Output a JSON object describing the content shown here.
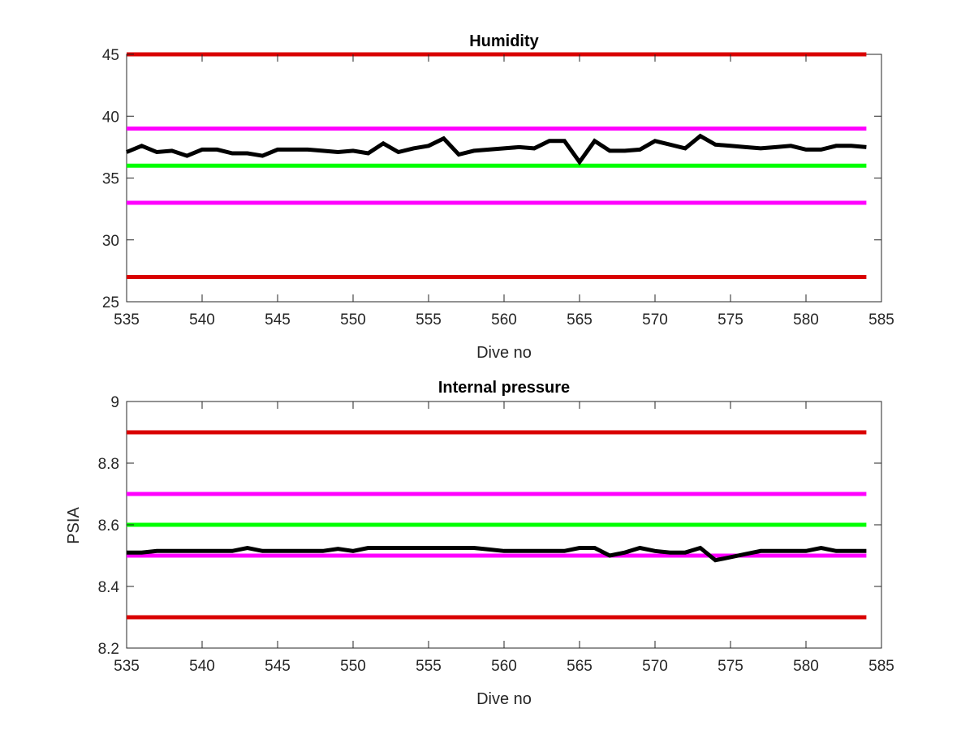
{
  "chart_data": [
    {
      "type": "line",
      "title": "Humidity",
      "xlabel": "Dive no",
      "ylabel": "",
      "xlim": [
        535,
        585
      ],
      "ylim": [
        25,
        45
      ],
      "xticks": [
        "535",
        "540",
        "545",
        "550",
        "555",
        "560",
        "565",
        "570",
        "575",
        "580",
        "585"
      ],
      "yticks": [
        "25",
        "30",
        "35",
        "40",
        "45"
      ],
      "grid": false,
      "hlines": [
        {
          "value": 45,
          "color": "#d90000"
        },
        {
          "value": 39,
          "color": "#ff00ff"
        },
        {
          "value": 36,
          "color": "#00ff00"
        },
        {
          "value": 33,
          "color": "#ff00ff"
        },
        {
          "value": 27,
          "color": "#d90000"
        }
      ],
      "series": [
        {
          "color": "#000000",
          "x": [
            535,
            536,
            537,
            538,
            539,
            540,
            541,
            542,
            543,
            544,
            545,
            546,
            547,
            548,
            549,
            550,
            551,
            552,
            553,
            554,
            555,
            556,
            557,
            558,
            559,
            560,
            561,
            562,
            563,
            564,
            565,
            566,
            567,
            568,
            569,
            570,
            571,
            572,
            573,
            574,
            575,
            576,
            577,
            578,
            579,
            580,
            581,
            582,
            583,
            584
          ],
          "y": [
            37.1,
            37.6,
            37.1,
            37.2,
            36.8,
            37.3,
            37.3,
            37.0,
            37.0,
            36.8,
            37.3,
            37.3,
            37.3,
            37.2,
            37.1,
            37.2,
            37.0,
            37.8,
            37.1,
            37.4,
            37.6,
            38.2,
            36.9,
            37.2,
            37.3,
            37.4,
            37.5,
            37.4,
            38.0,
            38.0,
            36.3,
            38.0,
            37.2,
            37.2,
            37.3,
            38.0,
            37.7,
            37.4,
            38.4,
            37.7,
            37.6,
            37.5,
            37.4,
            37.5,
            37.6,
            37.3,
            37.3,
            37.6,
            37.6,
            37.5
          ]
        }
      ]
    },
    {
      "type": "line",
      "title": "Internal pressure",
      "xlabel": "Dive no",
      "ylabel": "PSIA",
      "xlim": [
        535,
        585
      ],
      "ylim": [
        8.2,
        9.0
      ],
      "xticks": [
        "535",
        "540",
        "545",
        "550",
        "555",
        "560",
        "565",
        "570",
        "575",
        "580",
        "585"
      ],
      "yticks": [
        "8.2",
        "8.4",
        "8.6",
        "8.8",
        "9"
      ],
      "grid": false,
      "hlines": [
        {
          "value": 8.9,
          "color": "#d90000"
        },
        {
          "value": 8.7,
          "color": "#ff00ff"
        },
        {
          "value": 8.6,
          "color": "#00ff00"
        },
        {
          "value": 8.5,
          "color": "#ff00ff"
        },
        {
          "value": 8.3,
          "color": "#d90000"
        }
      ],
      "series": [
        {
          "color": "#000000",
          "x": [
            535,
            536,
            537,
            538,
            539,
            540,
            541,
            542,
            543,
            544,
            545,
            546,
            547,
            548,
            549,
            550,
            551,
            552,
            553,
            554,
            555,
            556,
            557,
            558,
            559,
            560,
            561,
            562,
            563,
            564,
            565,
            566,
            567,
            568,
            569,
            570,
            571,
            572,
            573,
            574,
            575,
            576,
            577,
            578,
            579,
            580,
            581,
            582,
            583,
            584
          ],
          "y": [
            8.51,
            8.51,
            8.515,
            8.515,
            8.515,
            8.515,
            8.515,
            8.515,
            8.525,
            8.515,
            8.515,
            8.515,
            8.515,
            8.515,
            8.522,
            8.515,
            8.525,
            8.525,
            8.525,
            8.525,
            8.525,
            8.525,
            8.525,
            8.525,
            8.52,
            8.515,
            8.515,
            8.515,
            8.515,
            8.515,
            8.525,
            8.525,
            8.5,
            8.51,
            8.525,
            8.515,
            8.51,
            8.51,
            8.525,
            8.485,
            8.495,
            8.505,
            8.515,
            8.515,
            8.515,
            8.515,
            8.525,
            8.515,
            8.515,
            8.515
          ]
        }
      ]
    }
  ]
}
